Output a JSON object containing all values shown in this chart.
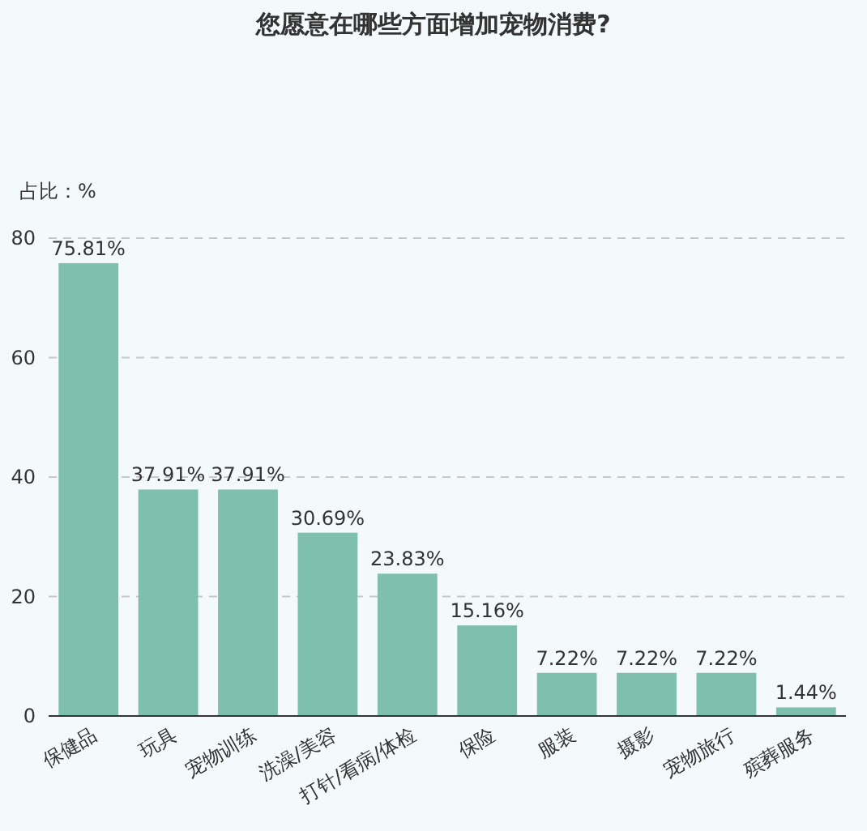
{
  "chart_data": {
    "type": "bar",
    "title": "您愿意在哪些方面增加宠物消费?",
    "ylabel": "占比：%",
    "categories": [
      "保健品",
      "玩具",
      "宠物训练",
      "洗澡/美容",
      "打针/看病/体检",
      "保险",
      "服装",
      "摄影",
      "宠物旅行",
      "殡葬服务"
    ],
    "values": [
      75.81,
      37.91,
      37.91,
      30.69,
      23.83,
      15.16,
      7.22,
      7.22,
      7.22,
      1.44
    ],
    "value_labels": [
      "75.81%",
      "37.91%",
      "37.91%",
      "30.69%",
      "23.83%",
      "15.16%",
      "7.22%",
      "7.22%",
      "7.22%",
      "1.44%"
    ],
    "color": "#7fbfae",
    "ylim": [
      0,
      80
    ],
    "yticks": [
      0,
      20,
      40,
      60,
      80
    ],
    "grid": "y"
  }
}
